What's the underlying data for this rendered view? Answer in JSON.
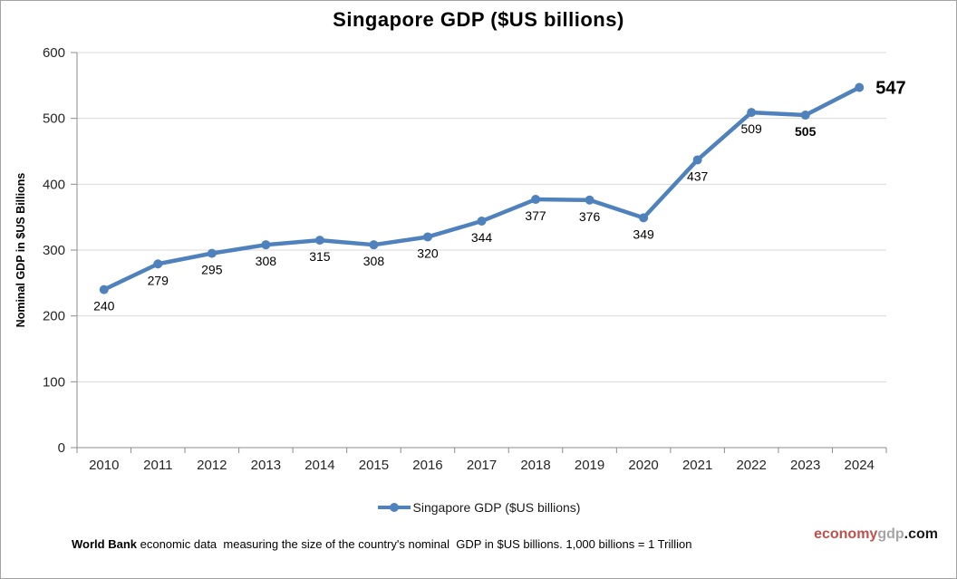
{
  "window": {
    "background": "#ffffff",
    "border_color": "#a3a3a3"
  },
  "chart_data": {
    "type": "line",
    "title": "Singapore GDP ($US billions)",
    "xlabel": "",
    "ylabel": "Nominal GDP in $US Billions",
    "categories": [
      "2010",
      "2011",
      "2012",
      "2013",
      "2014",
      "2015",
      "2016",
      "2017",
      "2018",
      "2019",
      "2020",
      "2021",
      "2022",
      "2023",
      "2024"
    ],
    "series": [
      {
        "name": "Singapore GDP ($US billions)",
        "values": [
          240,
          279,
          295,
          308,
          315,
          308,
          320,
          344,
          377,
          376,
          349,
          437,
          509,
          505,
          547
        ]
      }
    ],
    "ylim": [
      0,
      600
    ],
    "ytick_step": 100,
    "yticks": [
      0,
      100,
      200,
      300,
      400,
      500,
      600
    ],
    "grid": "horizontal",
    "data_labels_shown": true,
    "emphasized_label_indexes": [
      13,
      14
    ],
    "callout_label_index": 14,
    "legend": {
      "label": "Singapore GDP ($US billions)",
      "position": "bottom-center"
    },
    "colors": {
      "line": "#4f81bd",
      "marker": "#4f81bd",
      "grid": "#d9d9d9",
      "axis": "#8c8c8c",
      "tick_label": "#262626",
      "data_label": "#000000"
    }
  },
  "footer": {
    "text_bold": "World Bank",
    "text_rest": " economic data  measuring the size of the country's nominal  GDP in $US billions. 1,000 billions = 1 Trillion"
  },
  "brand": {
    "part_economy": "economy",
    "part_gdp": "gdp",
    "part_com": ".com",
    "colors": {
      "economy": "#c0504d",
      "gdp": "#a6a6a6",
      "com": "#1a1a1a"
    }
  }
}
